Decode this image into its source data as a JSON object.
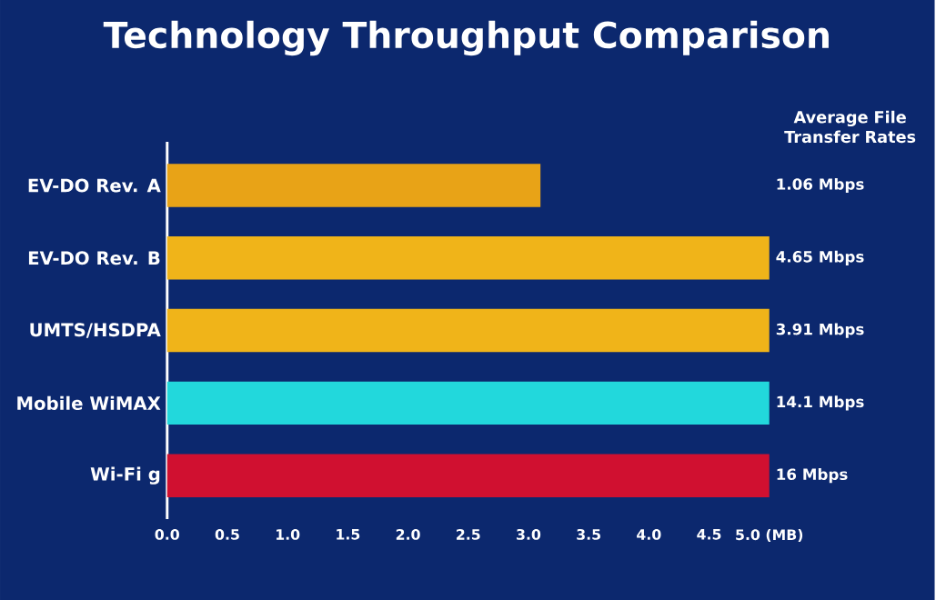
{
  "chart_data": {
    "type": "bar",
    "orientation": "horizontal",
    "title": "Technology Throughput Comparison",
    "categories": [
      "EV-DO Rev. A",
      "EV-DO Rev. B",
      "UMTS/HSDPA",
      "Mobile WiMAX",
      "Wi-Fi g"
    ],
    "values": [
      3.1,
      5.0,
      5.0,
      5.0,
      5.0
    ],
    "colors": [
      "#e8a317",
      "#f0b419",
      "#f0b419",
      "#22d8dc",
      "#d01030"
    ],
    "annotations": [
      "Average File Transfer Rates",
      "1.06 Mbps",
      "4.65 Mbps",
      "3.91 Mbps",
      "14.1 Mbps",
      "16 Mbps"
    ],
    "xlim": [
      0,
      5
    ],
    "xticks": [
      {
        "value": 0,
        "label": "0.0"
      },
      0.5,
      {
        "value": 1,
        "label": "1.0"
      },
      1.5,
      {
        "value": 2,
        "label": "2.0"
      },
      2.5,
      {
        "value": 3,
        "label": "3.0"
      },
      3.5,
      {
        "value": 4,
        "label": "4.0"
      },
      4.5,
      {
        "value": 5,
        "label": "5.0 (MB)"
      }
    ]
  }
}
